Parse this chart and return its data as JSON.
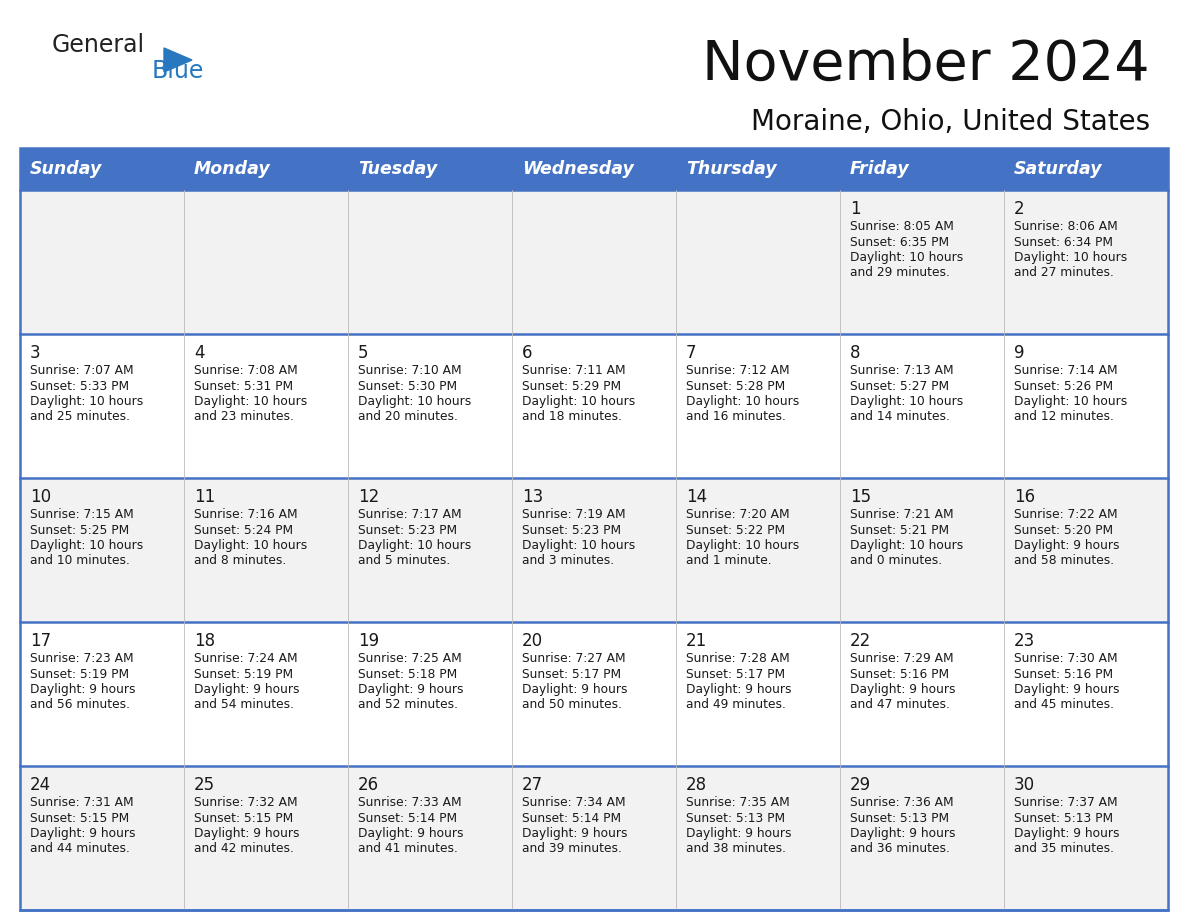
{
  "title": "November 2024",
  "subtitle": "Moraine, Ohio, United States",
  "header_bg_color": "#4472C4",
  "header_text_color": "#FFFFFF",
  "cell_bg_row0": "#F2F2F2",
  "cell_bg_row1": "#FFFFFF",
  "cell_bg_row2": "#F2F2F2",
  "cell_bg_row3": "#FFFFFF",
  "cell_bg_row4": "#F2F2F2",
  "grid_line_color": "#4472C4",
  "text_color": "#1a1a1a",
  "days_of_week": [
    "Sunday",
    "Monday",
    "Tuesday",
    "Wednesday",
    "Thursday",
    "Friday",
    "Saturday"
  ],
  "calendar_data": [
    [
      {
        "day": "",
        "lines": []
      },
      {
        "day": "",
        "lines": []
      },
      {
        "day": "",
        "lines": []
      },
      {
        "day": "",
        "lines": []
      },
      {
        "day": "",
        "lines": []
      },
      {
        "day": "1",
        "lines": [
          "Sunrise: 8:05 AM",
          "Sunset: 6:35 PM",
          "Daylight: 10 hours",
          "and 29 minutes."
        ]
      },
      {
        "day": "2",
        "lines": [
          "Sunrise: 8:06 AM",
          "Sunset: 6:34 PM",
          "Daylight: 10 hours",
          "and 27 minutes."
        ]
      }
    ],
    [
      {
        "day": "3",
        "lines": [
          "Sunrise: 7:07 AM",
          "Sunset: 5:33 PM",
          "Daylight: 10 hours",
          "and 25 minutes."
        ]
      },
      {
        "day": "4",
        "lines": [
          "Sunrise: 7:08 AM",
          "Sunset: 5:31 PM",
          "Daylight: 10 hours",
          "and 23 minutes."
        ]
      },
      {
        "day": "5",
        "lines": [
          "Sunrise: 7:10 AM",
          "Sunset: 5:30 PM",
          "Daylight: 10 hours",
          "and 20 minutes."
        ]
      },
      {
        "day": "6",
        "lines": [
          "Sunrise: 7:11 AM",
          "Sunset: 5:29 PM",
          "Daylight: 10 hours",
          "and 18 minutes."
        ]
      },
      {
        "day": "7",
        "lines": [
          "Sunrise: 7:12 AM",
          "Sunset: 5:28 PM",
          "Daylight: 10 hours",
          "and 16 minutes."
        ]
      },
      {
        "day": "8",
        "lines": [
          "Sunrise: 7:13 AM",
          "Sunset: 5:27 PM",
          "Daylight: 10 hours",
          "and 14 minutes."
        ]
      },
      {
        "day": "9",
        "lines": [
          "Sunrise: 7:14 AM",
          "Sunset: 5:26 PM",
          "Daylight: 10 hours",
          "and 12 minutes."
        ]
      }
    ],
    [
      {
        "day": "10",
        "lines": [
          "Sunrise: 7:15 AM",
          "Sunset: 5:25 PM",
          "Daylight: 10 hours",
          "and 10 minutes."
        ]
      },
      {
        "day": "11",
        "lines": [
          "Sunrise: 7:16 AM",
          "Sunset: 5:24 PM",
          "Daylight: 10 hours",
          "and 8 minutes."
        ]
      },
      {
        "day": "12",
        "lines": [
          "Sunrise: 7:17 AM",
          "Sunset: 5:23 PM",
          "Daylight: 10 hours",
          "and 5 minutes."
        ]
      },
      {
        "day": "13",
        "lines": [
          "Sunrise: 7:19 AM",
          "Sunset: 5:23 PM",
          "Daylight: 10 hours",
          "and 3 minutes."
        ]
      },
      {
        "day": "14",
        "lines": [
          "Sunrise: 7:20 AM",
          "Sunset: 5:22 PM",
          "Daylight: 10 hours",
          "and 1 minute."
        ]
      },
      {
        "day": "15",
        "lines": [
          "Sunrise: 7:21 AM",
          "Sunset: 5:21 PM",
          "Daylight: 10 hours",
          "and 0 minutes."
        ]
      },
      {
        "day": "16",
        "lines": [
          "Sunrise: 7:22 AM",
          "Sunset: 5:20 PM",
          "Daylight: 9 hours",
          "and 58 minutes."
        ]
      }
    ],
    [
      {
        "day": "17",
        "lines": [
          "Sunrise: 7:23 AM",
          "Sunset: 5:19 PM",
          "Daylight: 9 hours",
          "and 56 minutes."
        ]
      },
      {
        "day": "18",
        "lines": [
          "Sunrise: 7:24 AM",
          "Sunset: 5:19 PM",
          "Daylight: 9 hours",
          "and 54 minutes."
        ]
      },
      {
        "day": "19",
        "lines": [
          "Sunrise: 7:25 AM",
          "Sunset: 5:18 PM",
          "Daylight: 9 hours",
          "and 52 minutes."
        ]
      },
      {
        "day": "20",
        "lines": [
          "Sunrise: 7:27 AM",
          "Sunset: 5:17 PM",
          "Daylight: 9 hours",
          "and 50 minutes."
        ]
      },
      {
        "day": "21",
        "lines": [
          "Sunrise: 7:28 AM",
          "Sunset: 5:17 PM",
          "Daylight: 9 hours",
          "and 49 minutes."
        ]
      },
      {
        "day": "22",
        "lines": [
          "Sunrise: 7:29 AM",
          "Sunset: 5:16 PM",
          "Daylight: 9 hours",
          "and 47 minutes."
        ]
      },
      {
        "day": "23",
        "lines": [
          "Sunrise: 7:30 AM",
          "Sunset: 5:16 PM",
          "Daylight: 9 hours",
          "and 45 minutes."
        ]
      }
    ],
    [
      {
        "day": "24",
        "lines": [
          "Sunrise: 7:31 AM",
          "Sunset: 5:15 PM",
          "Daylight: 9 hours",
          "and 44 minutes."
        ]
      },
      {
        "day": "25",
        "lines": [
          "Sunrise: 7:32 AM",
          "Sunset: 5:15 PM",
          "Daylight: 9 hours",
          "and 42 minutes."
        ]
      },
      {
        "day": "26",
        "lines": [
          "Sunrise: 7:33 AM",
          "Sunset: 5:14 PM",
          "Daylight: 9 hours",
          "and 41 minutes."
        ]
      },
      {
        "day": "27",
        "lines": [
          "Sunrise: 7:34 AM",
          "Sunset: 5:14 PM",
          "Daylight: 9 hours",
          "and 39 minutes."
        ]
      },
      {
        "day": "28",
        "lines": [
          "Sunrise: 7:35 AM",
          "Sunset: 5:13 PM",
          "Daylight: 9 hours",
          "and 38 minutes."
        ]
      },
      {
        "day": "29",
        "lines": [
          "Sunrise: 7:36 AM",
          "Sunset: 5:13 PM",
          "Daylight: 9 hours",
          "and 36 minutes."
        ]
      },
      {
        "day": "30",
        "lines": [
          "Sunrise: 7:37 AM",
          "Sunset: 5:13 PM",
          "Daylight: 9 hours",
          "and 35 minutes."
        ]
      }
    ]
  ],
  "logo_general_color": "#222222",
  "logo_blue_color": "#2878C0",
  "logo_triangle_color": "#2878C0"
}
